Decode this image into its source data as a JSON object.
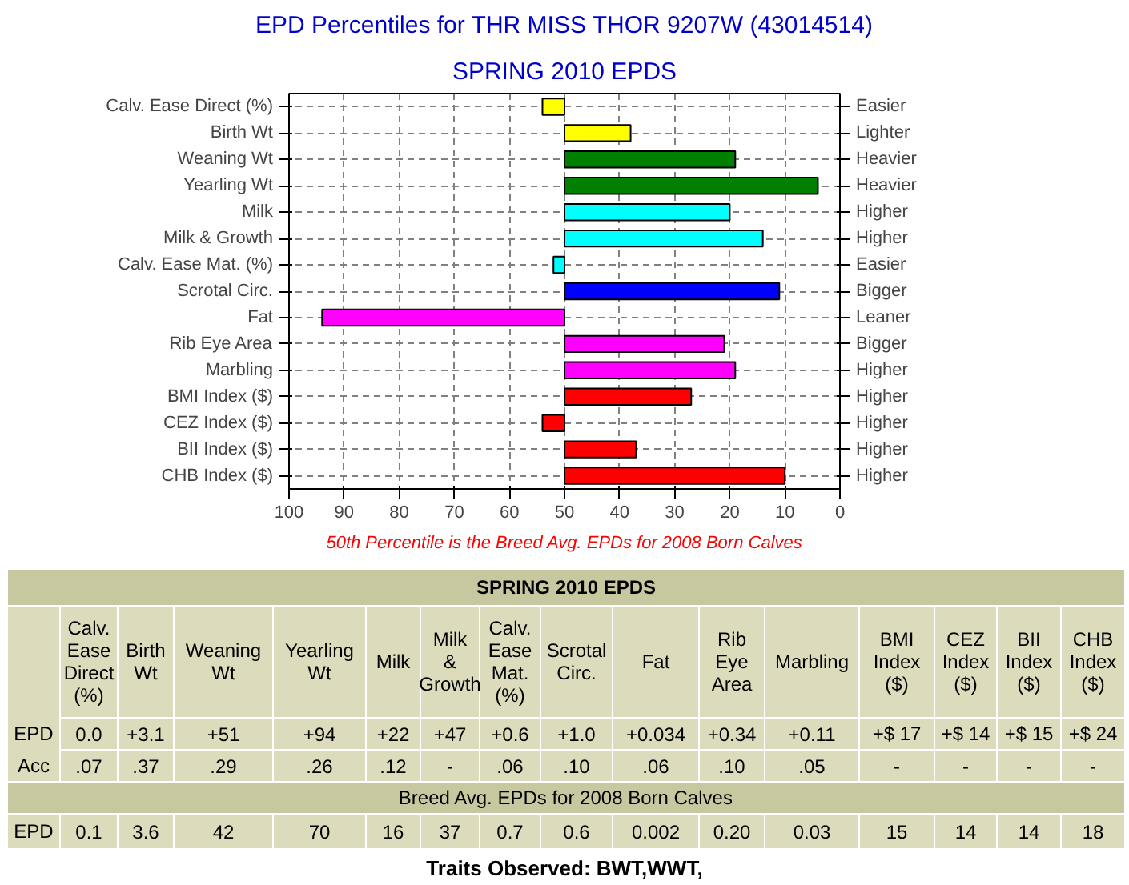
{
  "chart_data": {
    "type": "bar",
    "orientation": "horizontal",
    "title": "EPD Percentiles for THR MISS THOR 9207W (43014514)",
    "subtitle": "SPRING 2010 EPDS",
    "categories": [
      "Calv. Ease Direct (%)",
      "Birth Wt",
      "Weaning Wt",
      "Yearling Wt",
      "Milk",
      "Milk & Growth",
      "Calv. Ease Mat. (%)",
      "Scrotal Circ.",
      "Fat",
      "Rib Eye Area",
      "Marbling",
      "BMI Index ($)",
      "CEZ Index ($)",
      "BII Index ($)",
      "CHB Index ($)"
    ],
    "base": [
      50,
      50,
      50,
      50,
      50,
      50,
      50,
      50,
      50,
      50,
      50,
      50,
      50,
      50,
      50
    ],
    "values": [
      4,
      -12,
      -31,
      -46,
      -30,
      -36,
      2,
      -39,
      44,
      -29,
      -31,
      -23,
      4,
      -13,
      -40
    ],
    "colors": [
      "#ffff00",
      "#ffff00",
      "#008000",
      "#008000",
      "#00ffff",
      "#00ffff",
      "#00ffff",
      "#0000ff",
      "#ff00ff",
      "#ff00ff",
      "#ff00ff",
      "#ff0000",
      "#ff0000",
      "#ff0000",
      "#ff0000"
    ],
    "xlim": [
      100,
      0
    ],
    "xticks": [
      100,
      90,
      80,
      70,
      60,
      50,
      40,
      30,
      20,
      10,
      0
    ],
    "grid": true,
    "annotations": [
      "50th Percentile is the Breed Avg. EPDs for 2008 Born Calves",
      "SPRING 2010 EPDS",
      "Calv.\nEase\nDirect\n(%)",
      "Birth\nWt",
      "Weaning\nWt",
      "Yearling\nWt",
      "Milk",
      "Milk\n&\nGrowth",
      "Calv.\nEase\nMat.\n(%)",
      "Scrotal\nCirc.",
      "Fat",
      "Rib\nEye\nArea",
      "Marbling",
      "BMI\nIndex\n($)",
      "CEZ\nIndex\n($)",
      "BII\nIndex\n($)",
      "CHB\nIndex\n($)",
      "EPD",
      "0.0",
      "+3.1",
      "+51",
      "+94",
      "+22",
      "+47",
      "+0.6",
      "+1.0",
      "+0.034",
      "+0.34",
      "+0.11",
      "+$ 17",
      "+$ 14",
      "+$ 15",
      "+$ 24",
      "Acc",
      ".07",
      ".37",
      ".29",
      ".26",
      ".12",
      "-",
      ".06",
      ".10",
      ".06",
      ".10",
      ".05",
      "-",
      "-",
      "-",
      "-",
      "Breed Avg. EPDs for 2008 Born Calves",
      "EPD",
      "0.1",
      "3.6",
      "42",
      "70",
      "16",
      "37",
      "0.7",
      "0.6",
      "0.002",
      "0.20",
      "0.03",
      "15",
      "14",
      "14",
      "18",
      "Traits Observed: BWT,WWT,",
      "Easier",
      "Lighter",
      "Heavier",
      "Heavier",
      "Higher",
      "Higher",
      "Easier",
      "Bigger",
      "Leaner",
      "Bigger",
      "Higher",
      "Higher",
      "Higher",
      "Higher",
      "Higher"
    ]
  }
}
